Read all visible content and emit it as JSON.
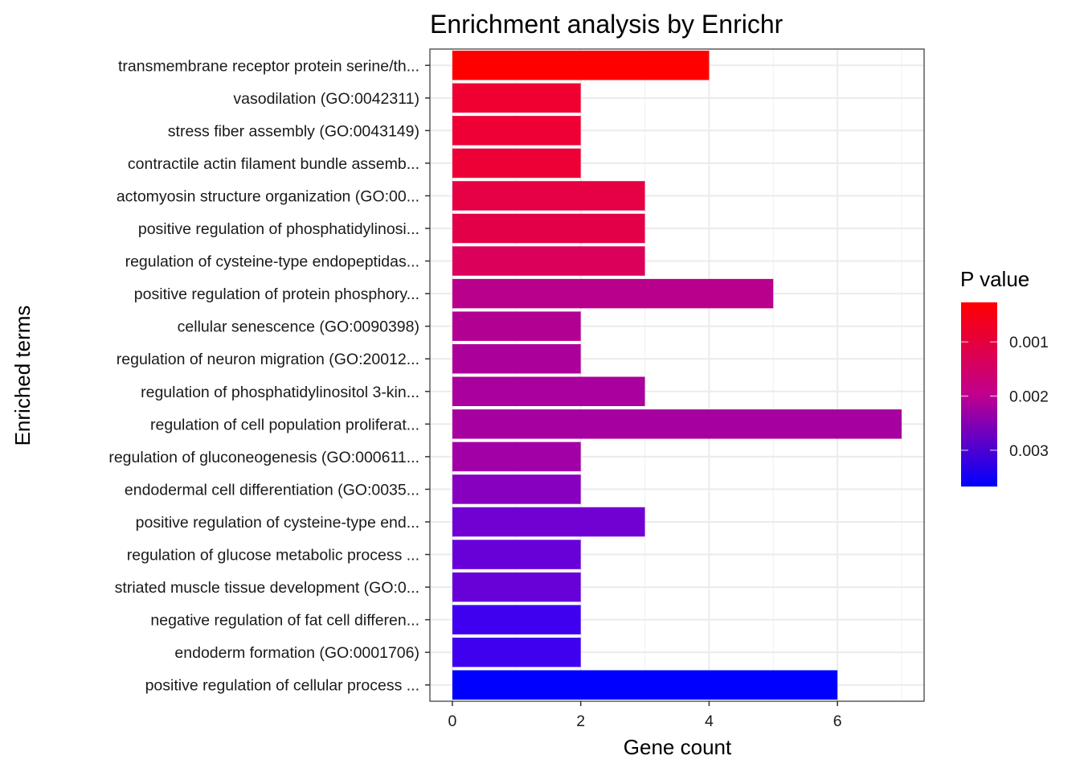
{
  "chart_data": {
    "type": "bar",
    "orientation": "horizontal",
    "title": "Enrichment analysis by Enrichr",
    "xlabel": "Gene count",
    "ylabel": "Enriched terms",
    "xlim": [
      -0.35,
      7.35
    ],
    "xticks": [
      0,
      2,
      4,
      6
    ],
    "xtick_labels": [
      "0",
      "2",
      "4",
      "6"
    ],
    "grid": true,
    "categories": [
      "transmembrane receptor protein serine/th...",
      "vasodilation (GO:0042311)",
      "stress fiber assembly (GO:0043149)",
      "contractile actin filament bundle assemb...",
      "actomyosin structure organization (GO:00...",
      "positive regulation of phosphatidylinosi...",
      "regulation of cysteine-type endopeptidas...",
      "positive regulation of protein phosphory...",
      "cellular senescence (GO:0090398)",
      "regulation of neuron migration (GO:20012...",
      "regulation of phosphatidylinositol 3-kin...",
      "regulation of cell population proliferat...",
      "regulation of gluconeogenesis (GO:000611...",
      "endodermal cell differentiation (GO:0035...",
      "positive regulation of cysteine-type end...",
      "regulation of glucose metabolic process ...",
      "striated muscle tissue development (GO:0...",
      "negative regulation of fat cell differen...",
      "endoderm formation (GO:0001706)",
      "positive regulation of cellular process ..."
    ],
    "values": [
      4,
      2,
      2,
      2,
      3,
      3,
      3,
      5,
      2,
      2,
      3,
      7,
      2,
      2,
      3,
      2,
      2,
      2,
      2,
      6
    ],
    "p_values": [
      0.00027,
      0.00065,
      0.00068,
      0.0007,
      0.00085,
      0.0009,
      0.0011,
      0.0018,
      0.0019,
      0.002,
      0.00205,
      0.0021,
      0.0022,
      0.0026,
      0.0029,
      0.003,
      0.003,
      0.0034,
      0.0034,
      0.00367
    ],
    "legend": {
      "title": "P value",
      "position": "right",
      "type": "colorbar",
      "low_color": "#ff0000",
      "high_color": "#0000ff",
      "range": [
        0.00027,
        0.00367
      ],
      "ticks": [
        0.001,
        0.002,
        0.003
      ],
      "tick_labels": [
        "0.001",
        "0.002",
        "0.003"
      ]
    }
  }
}
